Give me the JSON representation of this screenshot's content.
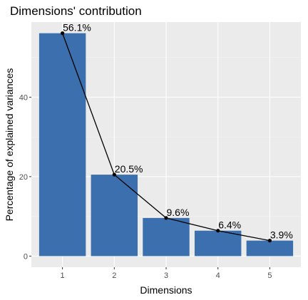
{
  "chart_data": {
    "type": "bar",
    "title": "Dimensions' contribution",
    "xlabel": "Dimensions",
    "ylabel": "Percentage of explained variances",
    "categories": [
      "1",
      "2",
      "3",
      "4",
      "5"
    ],
    "values": [
      56.1,
      20.5,
      9.6,
      6.4,
      3.9
    ],
    "data_labels": [
      "56.1%",
      "20.5%",
      "9.6%",
      "6.4%",
      "3.9%"
    ],
    "yticks": [
      0,
      20,
      40
    ],
    "ylim": [
      -2.8,
      58.9
    ],
    "overlay_line": true,
    "grid": true,
    "legend": "none",
    "colors": {
      "bar": "#3B6FAD",
      "line": "#000000",
      "panel": "#EBEBEB",
      "grid_major": "#FFFFFF",
      "grid_minor": "#F5F5F5"
    }
  }
}
